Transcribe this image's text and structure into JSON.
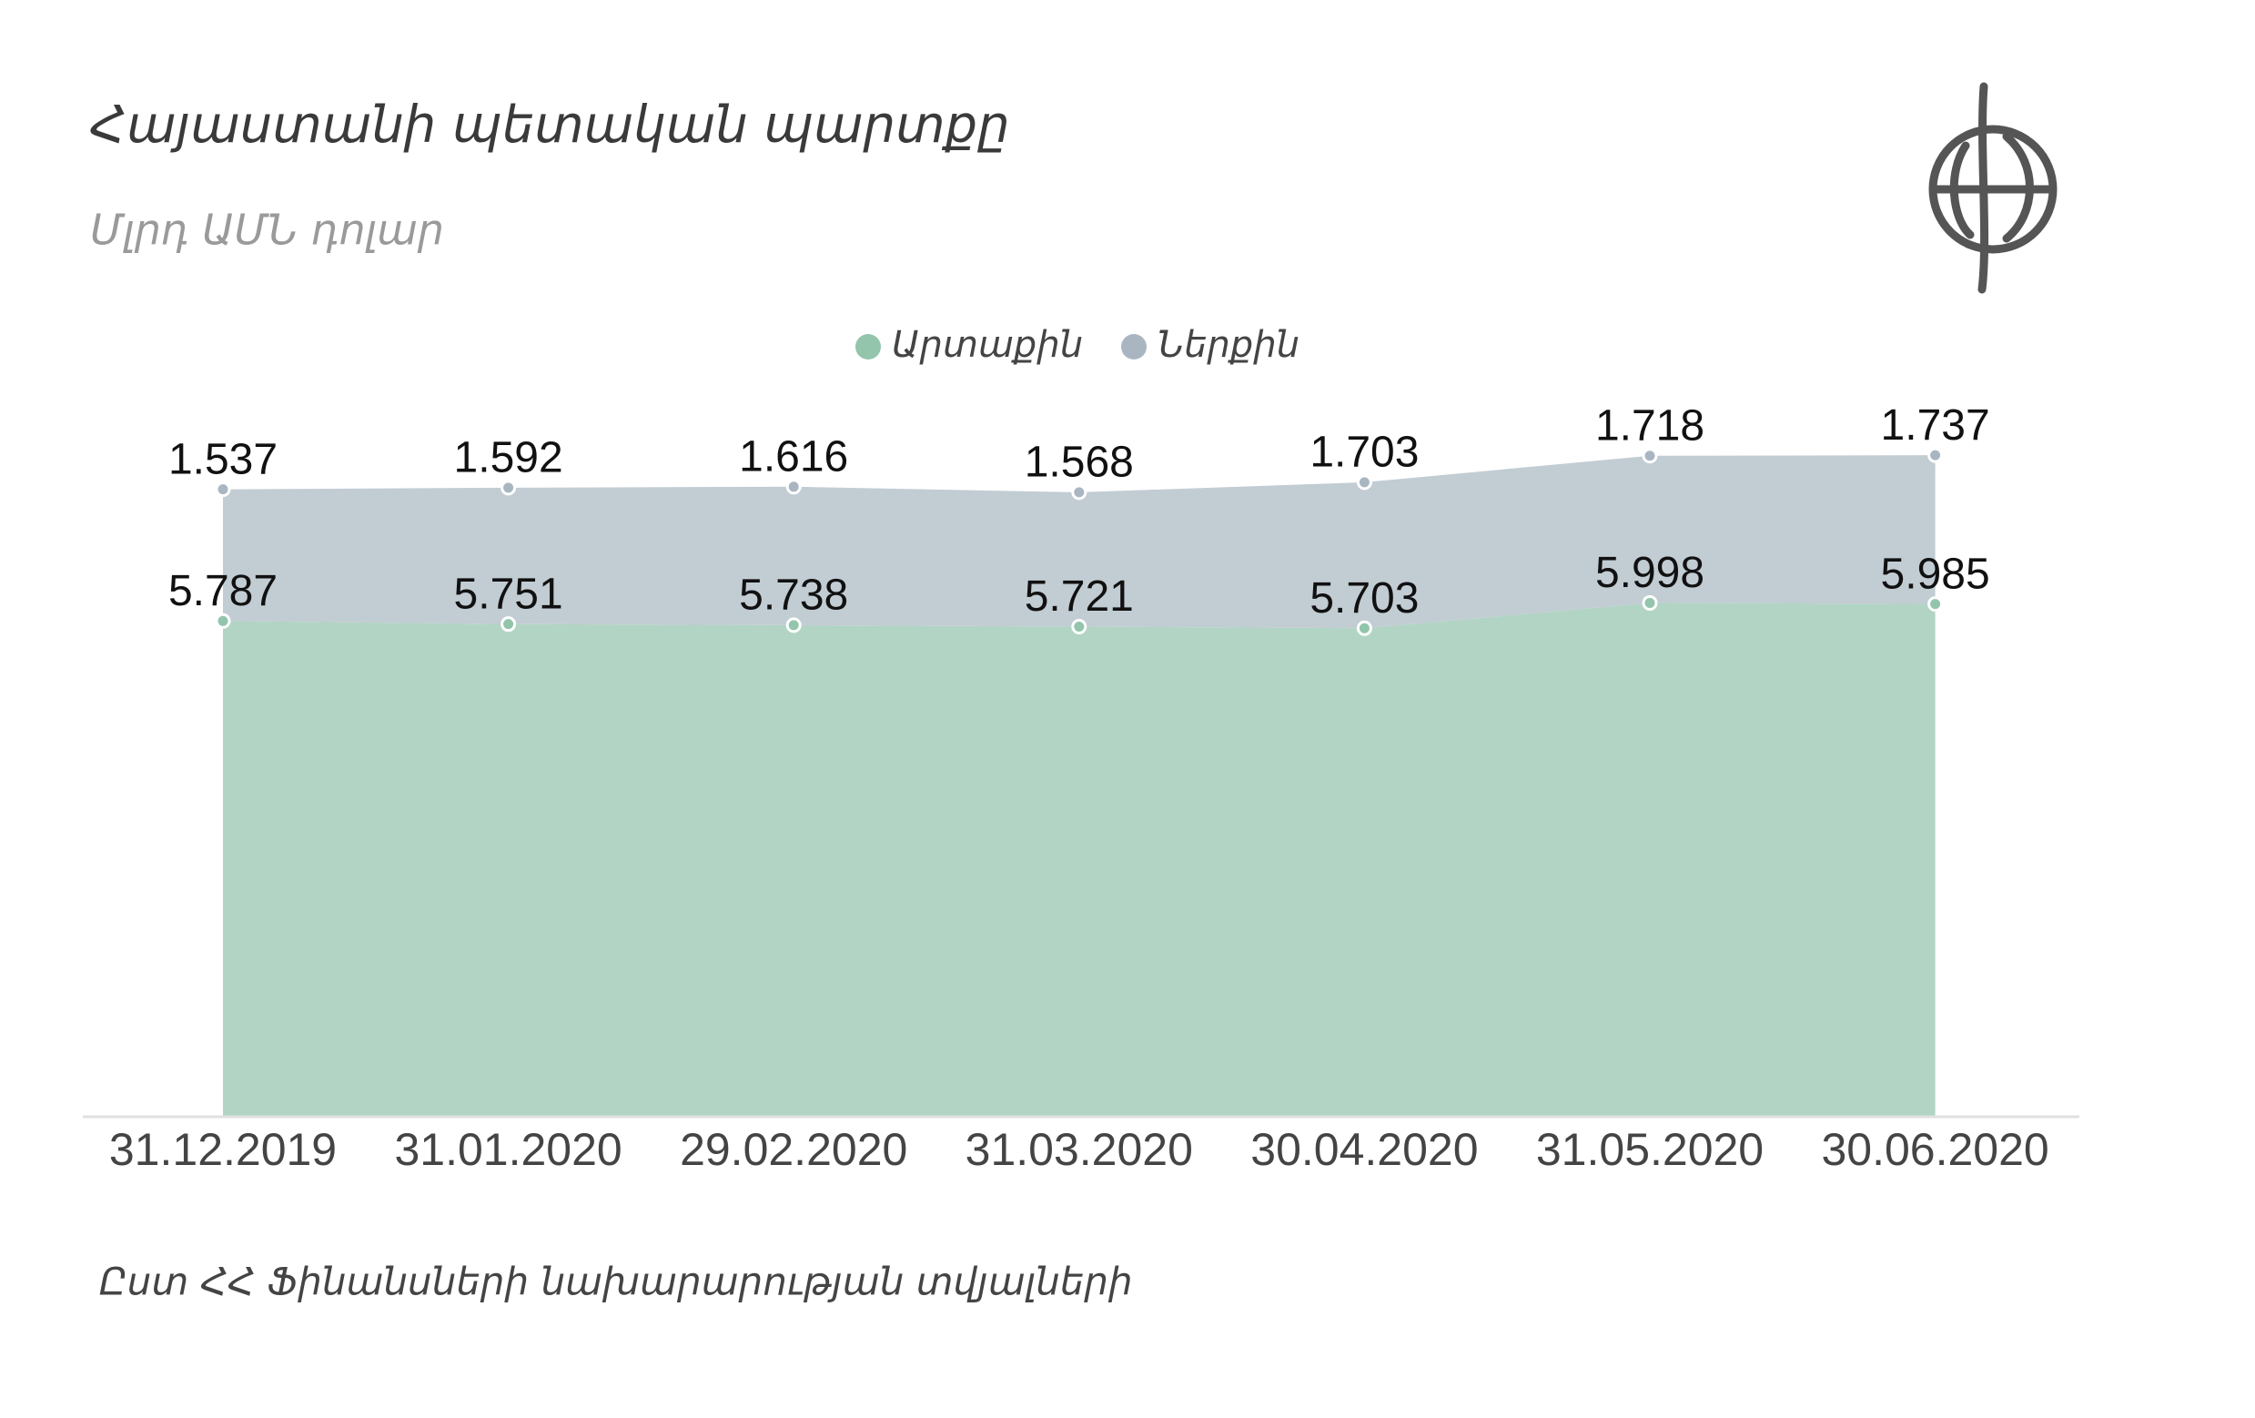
{
  "chart_data": {
    "type": "area",
    "title": "Հայաստանի պետական պարտքը",
    "subtitle": "Մլրդ ԱՄՆ դոլար",
    "source": "Ըստ ՀՀ  Ֆինանսների նախարարության տվյալների",
    "categories": [
      "31.12.2019",
      "31.01.2020",
      "29.02.2020",
      "31.03.2020",
      "30.04.2020",
      "31.05.2020",
      "30.06.2020"
    ],
    "series": [
      {
        "name": "Արտաքին",
        "color": "#b2d4c4",
        "values": [
          5.787,
          5.751,
          5.738,
          5.721,
          5.703,
          5.998,
          5.985
        ]
      },
      {
        "name": "Ներքին",
        "color": "#c2ccd3",
        "values": [
          1.537,
          1.592,
          1.616,
          1.568,
          1.703,
          1.718,
          1.737
        ]
      }
    ],
    "stacked": true,
    "ylim": [
      0,
      8
    ],
    "legend": "top"
  }
}
